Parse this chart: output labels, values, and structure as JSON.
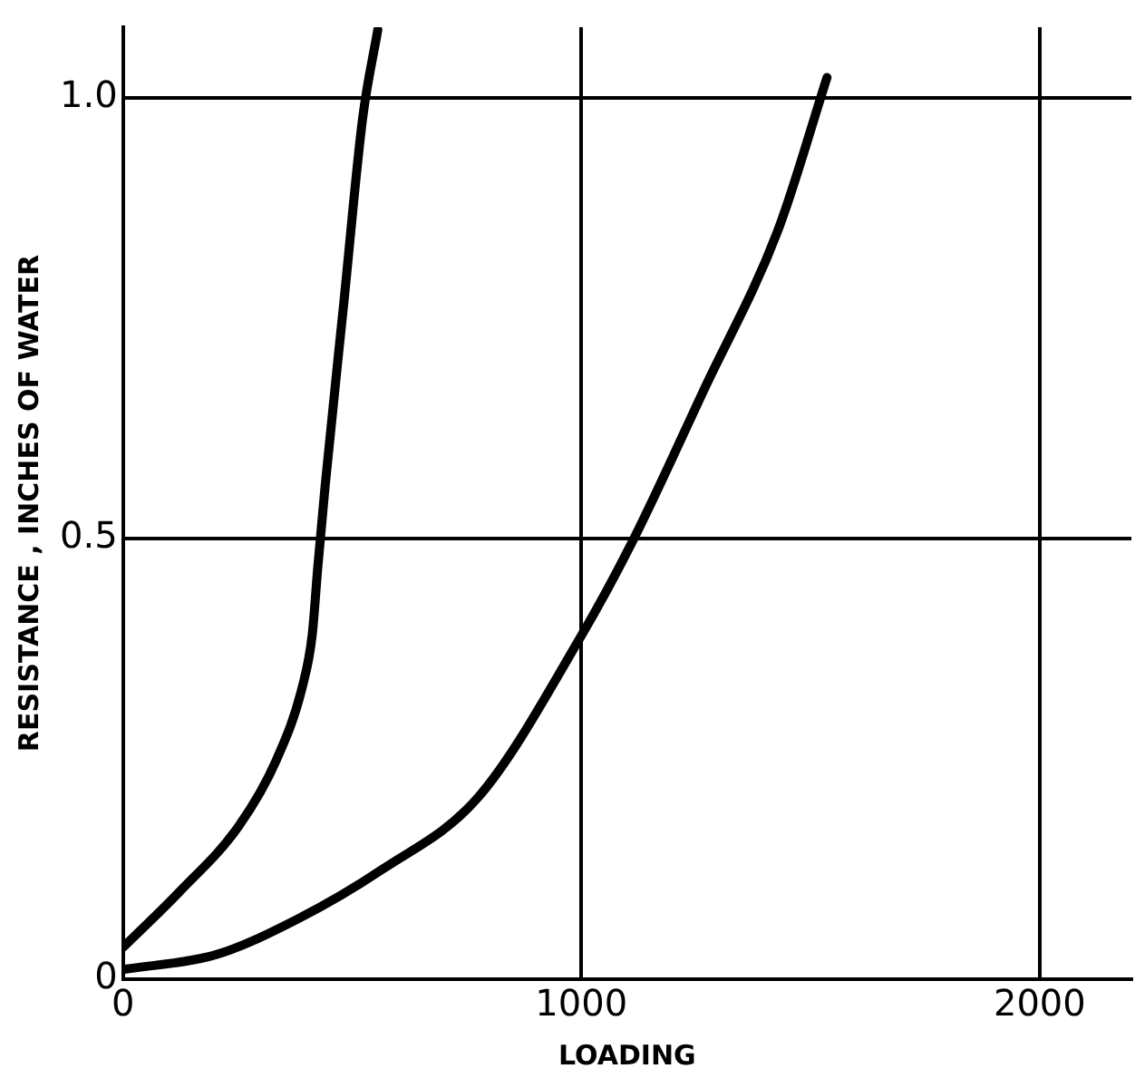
{
  "chart_data": {
    "type": "line",
    "xlabel": "LOADING",
    "ylabel": "RESISTANCE , INCHES OF WATER",
    "xlim": [
      0,
      2200
    ],
    "xticks": [
      0,
      1000,
      2000
    ],
    "ylim": [
      0,
      1.08
    ],
    "yticks": [
      0,
      {
        "value": 0.5,
        "label": "0.5"
      },
      {
        "value": 1,
        "label": "1.0"
      }
    ],
    "grid": true,
    "marker": "none",
    "line_style": "solid",
    "series": [
      {
        "color": "#000000",
        "x": [
          0,
          123,
          253,
          335,
          392,
          413,
          425,
          441,
          482,
          523,
          556
        ],
        "values": [
          0.036,
          0.099,
          0.174,
          0.249,
          0.333,
          0.391,
          0.467,
          0.559,
          0.768,
          0.977,
          1.077
        ]
      },
      {
        "color": "#000000",
        "x": [
          0,
          204,
          384,
          564,
          776,
          997,
          1111,
          1266,
          1430,
          1536
        ],
        "values": [
          0.011,
          0.028,
          0.069,
          0.124,
          0.207,
          0.387,
          0.496,
          0.667,
          0.851,
          1.023
        ]
      }
    ]
  }
}
